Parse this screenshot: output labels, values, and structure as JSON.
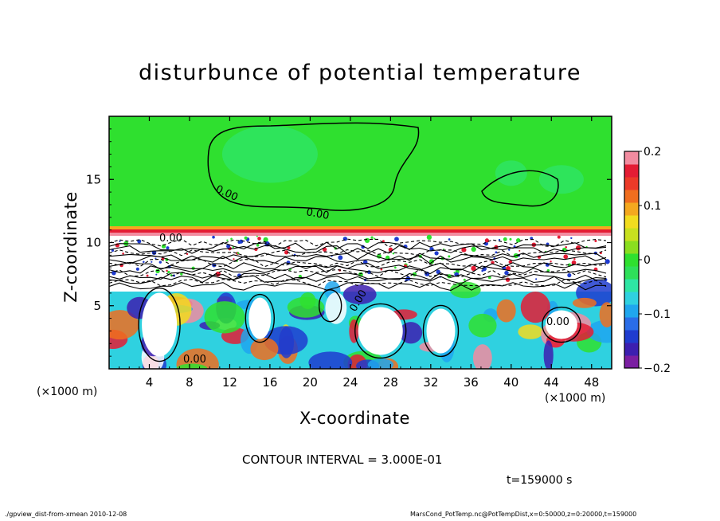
{
  "chart_data": {
    "type": "heatmap",
    "title": "disturbunce of potential temperature",
    "xlabel": "X-coordinate",
    "ylabel": "Z-coordinate",
    "x_unit_label": "(×1000 m)",
    "xlim": [
      0,
      50
    ],
    "ylim": [
      0,
      20
    ],
    "x_ticks": [
      "4",
      "8",
      "12",
      "16",
      "20",
      "24",
      "28",
      "32",
      "36",
      "40",
      "44",
      "48"
    ],
    "y_ticks": [
      "5",
      "10",
      "15"
    ],
    "colorbar": {
      "range": [
        -0.2,
        0.2
      ],
      "tick_labels": [
        "0.2",
        "0.1",
        "0",
        "−0.1",
        "−0.2"
      ],
      "colors": [
        "#7b1fa2",
        "#3c1fb0",
        "#1f3ccf",
        "#2a6de8",
        "#1fa6ee",
        "#2fd1e0",
        "#2ee6a4",
        "#2fe05a",
        "#2fe02f",
        "#8ade1f",
        "#c8e01f",
        "#f2dc1f",
        "#f4a81f",
        "#f06e1f",
        "#ec3a28",
        "#e41c34",
        "#f28ca0"
      ]
    },
    "contour_labels": [
      "0.00",
      "0.00",
      "0.00",
      "0.00",
      "0.00",
      "0.00"
    ],
    "contour_interval": "CONTOUR INTERVAL = 3.000E-01",
    "time": "t=159000 s"
  },
  "footer": {
    "left": "./gpview_dist-from-xmean  2010-12-08",
    "right": "MarsCond_PotTemp.nc@PotTempDist,x=0:50000,z=0:20000,t=159000"
  }
}
